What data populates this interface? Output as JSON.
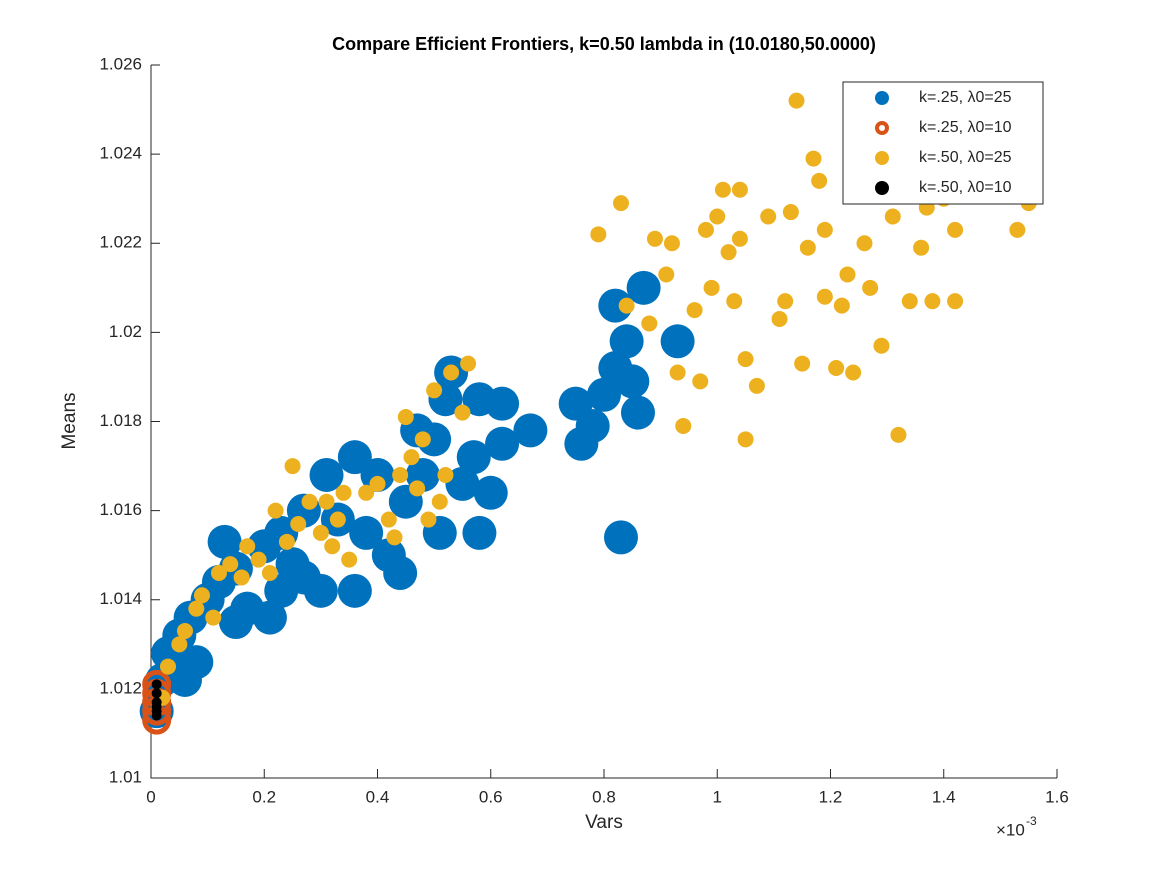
{
  "chart_data": {
    "type": "scatter",
    "title": "Compare Efficient Frontiers, k=0.50 lambda in (10.0180,50.0000)",
    "x_label": "Vars",
    "y_label": "Means",
    "x_scale_label": "×10",
    "x_scale_exponent": "-3",
    "xlim": [
      0,
      1.6
    ],
    "xticks": [
      0,
      0.2,
      0.4,
      0.6,
      0.8,
      1,
      1.2,
      1.4,
      1.6
    ],
    "ylim": [
      1.01,
      1.026
    ],
    "yticks": [
      1.01,
      1.012,
      1.014,
      1.016,
      1.018,
      1.02,
      1.022,
      1.024,
      1.026
    ],
    "legend": "upper right",
    "series": [
      {
        "name": "k=.25, λ0=25",
        "color": "#0072bd",
        "x": [
          0.01,
          0.02,
          0.03,
          0.05,
          0.07,
          0.08,
          0.1,
          0.12,
          0.13,
          0.15,
          0.17,
          0.2,
          0.21,
          0.23,
          0.25,
          0.27,
          0.3,
          0.31,
          0.33,
          0.36,
          0.36,
          0.38,
          0.4,
          0.42,
          0.44,
          0.45,
          0.48,
          0.5,
          0.51,
          0.52,
          0.53,
          0.55,
          0.57,
          0.58,
          0.58,
          0.6,
          0.62,
          0.62,
          0.67,
          0.75,
          0.76,
          0.78,
          0.8,
          0.82,
          0.82,
          0.83,
          0.84,
          0.85,
          0.86,
          0.87,
          0.93,
          0.23,
          0.15,
          0.06,
          0.27,
          0.47
        ],
        "values": [
          1.0115,
          1.0122,
          1.0128,
          1.0132,
          1.0136,
          1.0126,
          1.014,
          1.0144,
          1.0153,
          1.0147,
          1.0138,
          1.0152,
          1.0136,
          1.0155,
          1.0148,
          1.016,
          1.0142,
          1.0168,
          1.0158,
          1.0172,
          1.0142,
          1.0155,
          1.0168,
          1.015,
          1.0146,
          1.0162,
          1.0168,
          1.0176,
          1.0155,
          1.0185,
          1.0191,
          1.0166,
          1.0172,
          1.0185,
          1.0155,
          1.0164,
          1.0184,
          1.0175,
          1.0178,
          1.0184,
          1.0175,
          1.0179,
          1.0186,
          1.0206,
          1.0192,
          1.0154,
          1.0198,
          1.0189,
          1.0182,
          1.021,
          1.0198,
          1.0142,
          1.0135,
          1.0122,
          1.0145,
          1.0178
        ]
      },
      {
        "name": "k=.25, λ0=10",
        "color": "#d95319",
        "x": [
          0.01,
          0.01,
          0.01,
          0.01,
          0.01
        ],
        "values": [
          1.0113,
          1.0115,
          1.0117,
          1.0119,
          1.0121
        ]
      },
      {
        "name": "k=.50, λ0=25",
        "color": "#edb120",
        "x": [
          0.02,
          0.03,
          0.05,
          0.06,
          0.08,
          0.09,
          0.11,
          0.12,
          0.14,
          0.16,
          0.17,
          0.19,
          0.21,
          0.22,
          0.24,
          0.25,
          0.26,
          0.28,
          0.3,
          0.31,
          0.32,
          0.33,
          0.34,
          0.35,
          0.38,
          0.4,
          0.42,
          0.43,
          0.44,
          0.45,
          0.46,
          0.47,
          0.48,
          0.49,
          0.5,
          0.51,
          0.52,
          0.53,
          0.55,
          0.56,
          0.84,
          0.83,
          0.79,
          0.88,
          0.89,
          0.92,
          0.91,
          0.93,
          0.94,
          0.96,
          0.97,
          0.98,
          0.99,
          1,
          1.01,
          1.02,
          1.03,
          1.04,
          1.04,
          1.05,
          1.05,
          1.07,
          1.09,
          1.11,
          1.13,
          1.14,
          1.15,
          1.16,
          1.17,
          1.18,
          1.19,
          1.21,
          1.22,
          1.23,
          1.24,
          1.26,
          1.27,
          1.29,
          1.31,
          1.32,
          1.34,
          1.36,
          1.37,
          1.38,
          1.4,
          1.42,
          1.42,
          1.53,
          1.55,
          1.19,
          1.12
        ],
        "values": [
          1.0118,
          1.0125,
          1.013,
          1.0133,
          1.0138,
          1.0141,
          1.0136,
          1.0146,
          1.0148,
          1.0145,
          1.0152,
          1.0149,
          1.0146,
          1.016,
          1.0153,
          1.017,
          1.0157,
          1.0162,
          1.0155,
          1.0162,
          1.0152,
          1.0158,
          1.0164,
          1.0149,
          1.0164,
          1.0166,
          1.0158,
          1.0154,
          1.0168,
          1.0181,
          1.0172,
          1.0165,
          1.0176,
          1.0158,
          1.0187,
          1.0162,
          1.0168,
          1.0191,
          1.0182,
          1.0193,
          1.0206,
          1.0229,
          1.0222,
          1.0202,
          1.0221,
          1.022,
          1.0213,
          1.0191,
          1.0179,
          1.0205,
          1.0189,
          1.0223,
          1.021,
          1.0226,
          1.0232,
          1.0218,
          1.0207,
          1.0221,
          1.0232,
          1.0176,
          1.0194,
          1.0188,
          1.0226,
          1.0203,
          1.0227,
          1.0252,
          1.0193,
          1.0219,
          1.0239,
          1.0234,
          1.0208,
          1.0192,
          1.0206,
          1.0213,
          1.0191,
          1.022,
          1.021,
          1.0197,
          1.0226,
          1.0177,
          1.0207,
          1.0219,
          1.0228,
          1.0207,
          1.023,
          1.0223,
          1.0207,
          1.0223,
          1.0229,
          1.0223,
          1.0207
        ]
      },
      {
        "name": "k=.50, λ0=10",
        "color": "#000000",
        "x": [
          0.01,
          0.01,
          0.01,
          0.01,
          0.01,
          0.01
        ],
        "values": [
          1.0114,
          1.0115,
          1.0116,
          1.0117,
          1.0119,
          1.0121
        ]
      }
    ]
  }
}
